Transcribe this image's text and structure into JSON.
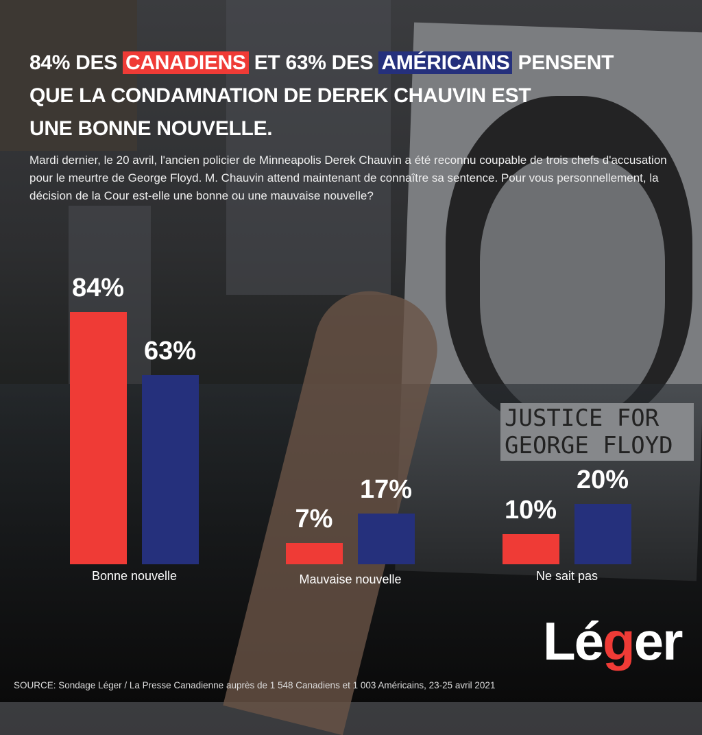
{
  "title": {
    "line1_pre": "84% DES ",
    "line1_red": "CANADIENS",
    "line1_mid": " ET 63% DES ",
    "line1_blue": "AMÉRICAINS",
    "line1_post": " PENSENT",
    "line2": "QUE LA CONDAMNATION DE DEREK CHAUVIN EST",
    "line3": "UNE BONNE NOUVELLE."
  },
  "subtitle": "Mardi dernier, le 20 avril, l'ancien policier de Minneapolis Derek Chauvin a été reconnu coupable de trois chefs d'accusation pour le meurtre de George Floyd. M. Chauvin attend maintenant de connaître sa sentence. Pour vous personnellement, la décision de la Cour est-elle une bonne ou une mauvaise nouvelle?",
  "photo_sign_text": "JUSTICE FOR GEORGE FLOYD",
  "colors": {
    "canadiens": "#ef3b36",
    "americains": "#25307c"
  },
  "chart_data": {
    "type": "bar",
    "categories": [
      "Bonne nouvelle",
      "Mauvaise nouvelle",
      "Ne sait pas"
    ],
    "series": [
      {
        "name": "CANADIENS",
        "values": [
          84,
          7,
          10
        ],
        "labels": [
          "84%",
          "7%",
          "10%"
        ],
        "color": "#ef3b36"
      },
      {
        "name": "AMÉRICAINS",
        "values": [
          63,
          17,
          20
        ],
        "labels": [
          "63%",
          "17%",
          "20%"
        ],
        "color": "#25307c"
      }
    ],
    "unit": "%",
    "grid": false
  },
  "logo": {
    "text": "Léger"
  },
  "source": "SOURCE: Sondage Léger / La Presse Canadienne auprès de 1 548 Canadiens et 1 003 Américains, 23-25 avril 2021"
}
